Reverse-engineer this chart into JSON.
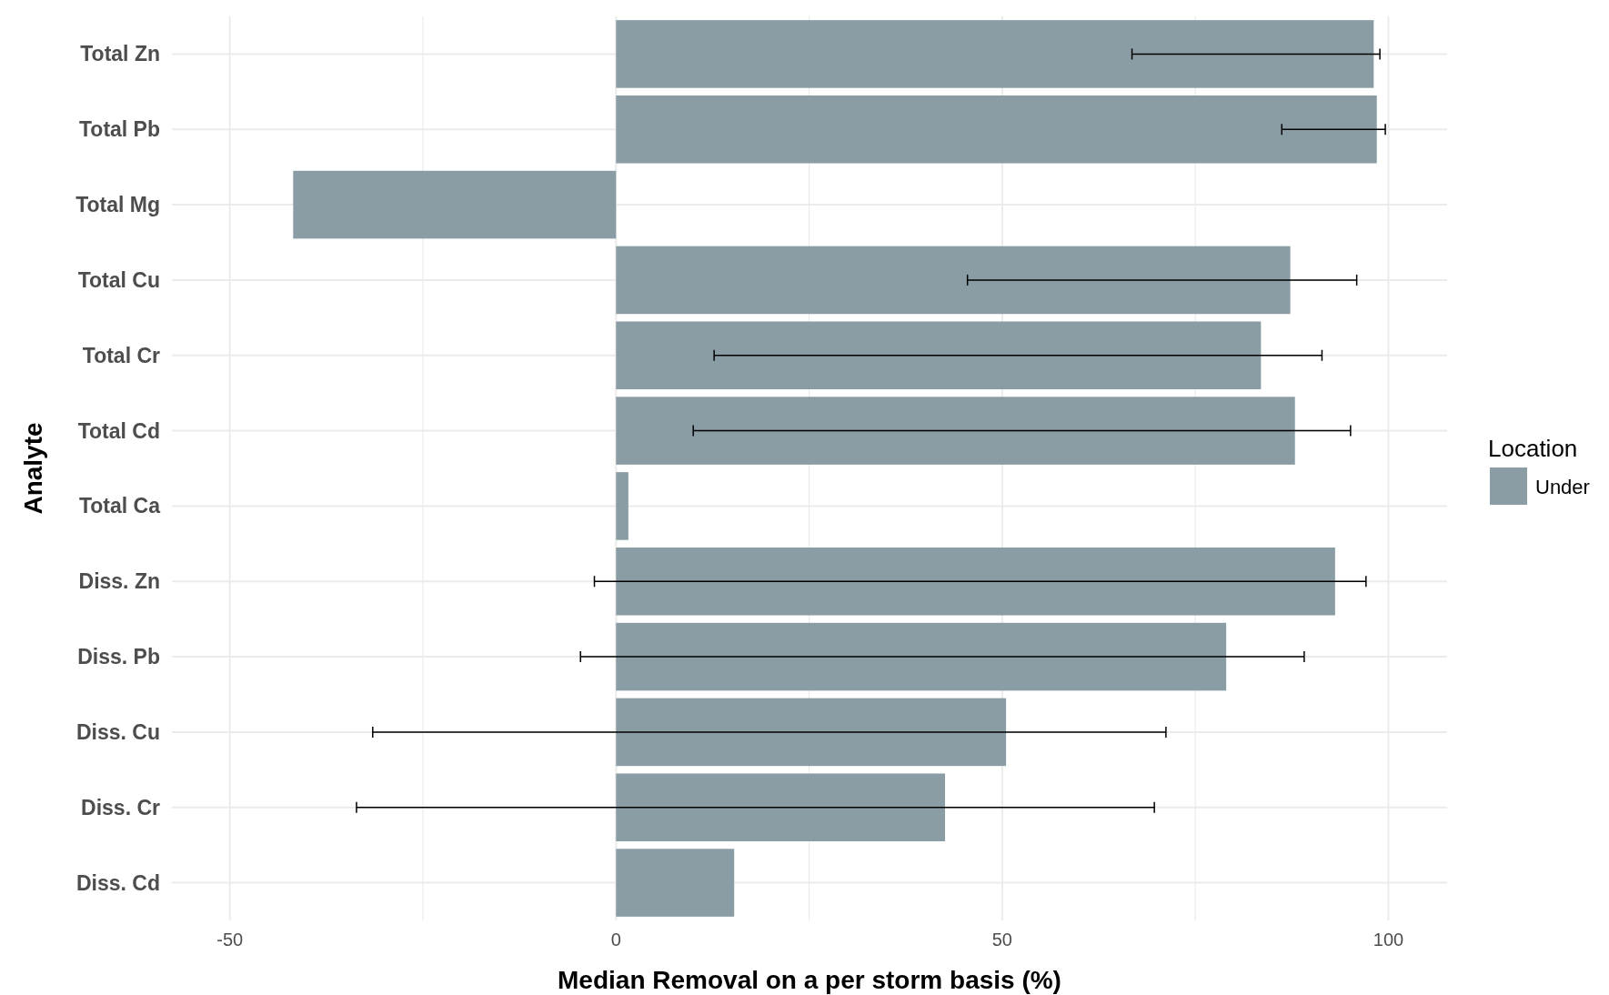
{
  "chart_data": {
    "type": "bar",
    "orientation": "horizontal",
    "xlabel": "Median Removal on a per storm basis (%)",
    "ylabel": "Analyte",
    "legend_title": "Location",
    "categories": [
      "Total Zn",
      "Total Pb",
      "Total Mg",
      "Total Cu",
      "Total Cr",
      "Total Cd",
      "Total Ca",
      "Diss. Zn",
      "Diss. Pb",
      "Diss. Cu",
      "Diss. Cr",
      "Diss. Cd"
    ],
    "series": [
      {
        "name": "Under",
        "color": "#8a9da4",
        "values": [
          98.1,
          98.5,
          -41.8,
          87.3,
          83.5,
          87.9,
          1.6,
          93.1,
          79.0,
          50.5,
          42.6,
          15.3
        ],
        "errors": [
          [
            66.8,
            98.9
          ],
          [
            86.2,
            99.6
          ],
          null,
          [
            45.5,
            95.9
          ],
          [
            12.7,
            91.4
          ],
          [
            10.0,
            95.1
          ],
          null,
          [
            -2.8,
            97.1
          ],
          [
            -4.6,
            89.1
          ],
          [
            -31.5,
            71.2
          ],
          [
            -33.6,
            69.7
          ],
          null
        ]
      }
    ],
    "xlim": [
      -57.5,
      107.6
    ],
    "xticks": [
      -50,
      {
        "value": -25,
        "label": null
      },
      0,
      {
        "value": 25,
        "label": null
      },
      50,
      {
        "value": 75,
        "label": null
      },
      100
    ],
    "grid": true,
    "legend": "right"
  }
}
